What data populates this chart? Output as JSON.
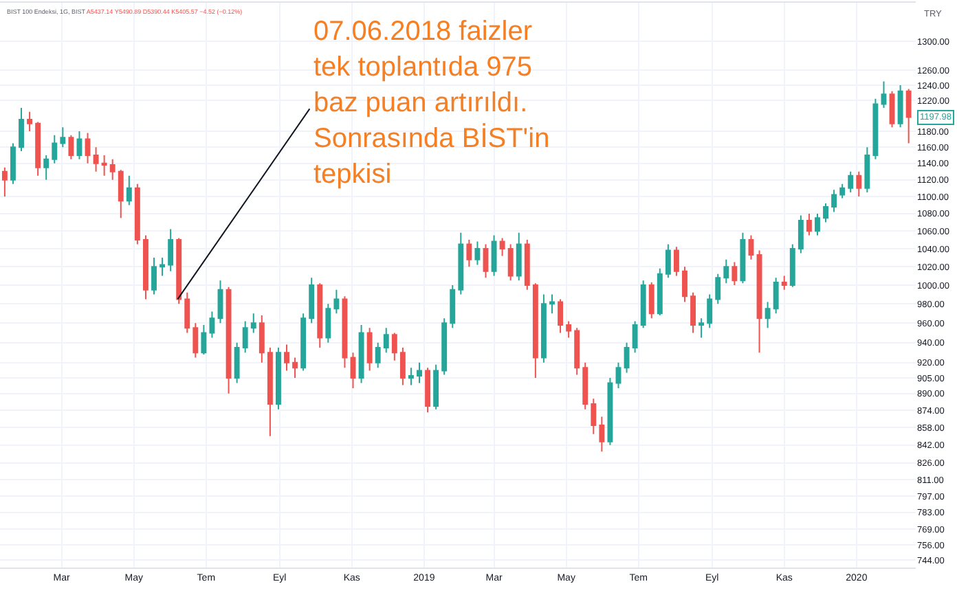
{
  "chart_data": {
    "type": "candlestick",
    "title": "BIST 100 Endeksi, 1G, BIST",
    "subtitle": "A5437.14 Y5490.89 D5390.44 K5405.57 −4.52 (−0.12%)",
    "annotations": [
      {
        "text": "07.06.2018 faizler\ntek toplantıda 975\nbaz puan artırıldı.\nSonrasında BİST'in\ntepkisi",
        "x": "2018-06-07",
        "y": 985
      },
      {
        "text": "TRY"
      },
      {
        "text": "1197.98",
        "x": "2020-02-14",
        "y": 1197.98
      }
    ],
    "x": [
      "2018-01-12",
      "2018-01-19",
      "2018-01-26",
      "2018-02-02",
      "2018-02-09",
      "2018-02-16",
      "2018-02-23",
      "2018-03-02",
      "2018-03-09",
      "2018-03-16",
      "2018-03-23",
      "2018-03-30",
      "2018-04-06",
      "2018-04-13",
      "2018-04-20",
      "2018-04-27",
      "2018-05-04",
      "2018-05-11",
      "2018-05-18",
      "2018-05-25",
      "2018-06-01",
      "2018-06-08",
      "2018-06-15",
      "2018-06-22",
      "2018-06-29",
      "2018-07-06",
      "2018-07-13",
      "2018-07-20",
      "2018-07-27",
      "2018-08-03",
      "2018-08-10",
      "2018-08-17",
      "2018-08-24",
      "2018-08-31",
      "2018-09-07",
      "2018-09-14",
      "2018-09-21",
      "2018-09-28",
      "2018-10-05",
      "2018-10-12",
      "2018-10-19",
      "2018-10-26",
      "2018-11-02",
      "2018-11-09",
      "2018-11-16",
      "2018-11-23",
      "2018-11-30",
      "2018-12-07",
      "2018-12-14",
      "2018-12-21",
      "2018-12-28",
      "2019-01-04",
      "2019-01-11",
      "2019-01-18",
      "2019-01-25",
      "2019-02-01",
      "2019-02-08",
      "2019-02-15",
      "2019-02-22",
      "2019-03-01",
      "2019-03-08",
      "2019-03-15",
      "2019-03-22",
      "2019-03-29",
      "2019-04-05",
      "2019-04-12",
      "2019-04-19",
      "2019-04-26",
      "2019-05-03",
      "2019-05-10",
      "2019-05-17",
      "2019-05-24",
      "2019-05-31",
      "2019-06-07",
      "2019-06-14",
      "2019-06-21",
      "2019-06-28",
      "2019-07-05",
      "2019-07-12",
      "2019-07-19",
      "2019-07-26",
      "2019-08-02",
      "2019-08-09",
      "2019-08-16",
      "2019-08-23",
      "2019-08-30",
      "2019-09-06",
      "2019-09-13",
      "2019-09-20",
      "2019-09-27",
      "2019-10-04",
      "2019-10-11",
      "2019-10-18",
      "2019-10-25",
      "2019-11-01",
      "2019-11-08",
      "2019-11-15",
      "2019-11-22",
      "2019-11-29",
      "2019-12-06",
      "2019-12-13",
      "2019-12-20",
      "2019-12-27",
      "2020-01-03",
      "2020-01-10",
      "2020-01-17",
      "2020-01-24",
      "2020-01-31",
      "2020-02-07",
      "2020-02-14"
    ],
    "ohlc": [
      [
        1130,
        1135,
        1100,
        1120
      ],
      [
        1120,
        1165,
        1115,
        1160
      ],
      [
        1160,
        1210,
        1155,
        1195
      ],
      [
        1195,
        1205,
        1180,
        1190
      ],
      [
        1190,
        1192,
        1125,
        1135
      ],
      [
        1135,
        1150,
        1120,
        1145
      ],
      [
        1145,
        1175,
        1140,
        1165
      ],
      [
        1165,
        1185,
        1160,
        1172
      ],
      [
        1172,
        1175,
        1145,
        1150
      ],
      [
        1150,
        1180,
        1145,
        1170
      ],
      [
        1170,
        1178,
        1140,
        1150
      ],
      [
        1150,
        1160,
        1130,
        1140
      ],
      [
        1140,
        1150,
        1125,
        1138
      ],
      [
        1138,
        1145,
        1120,
        1130
      ],
      [
        1130,
        1132,
        1075,
        1095
      ],
      [
        1095,
        1125,
        1090,
        1110
      ],
      [
        1110,
        1115,
        1045,
        1050
      ],
      [
        1050,
        1055,
        985,
        995
      ],
      [
        995,
        1030,
        990,
        1020
      ],
      [
        1020,
        1030,
        1010,
        1022
      ],
      [
        1022,
        1062,
        1015,
        1050
      ],
      [
        1050,
        1052,
        980,
        985
      ],
      [
        985,
        992,
        950,
        955
      ],
      [
        955,
        960,
        925,
        930
      ],
      [
        930,
        958,
        928,
        950
      ],
      [
        950,
        972,
        945,
        965
      ],
      [
        965,
        1005,
        960,
        995
      ],
      [
        995,
        998,
        890,
        905
      ],
      [
        905,
        940,
        900,
        935
      ],
      [
        935,
        962,
        930,
        955
      ],
      [
        955,
        970,
        950,
        960
      ],
      [
        960,
        968,
        920,
        930
      ],
      [
        930,
        935,
        850,
        880
      ],
      [
        880,
        935,
        875,
        930
      ],
      [
        930,
        938,
        912,
        920
      ],
      [
        920,
        925,
        905,
        915
      ],
      [
        915,
        970,
        912,
        965
      ],
      [
        965,
        1008,
        960,
        1000
      ],
      [
        1000,
        1002,
        935,
        945
      ],
      [
        945,
        980,
        940,
        975
      ],
      [
        975,
        995,
        970,
        985
      ],
      [
        985,
        988,
        915,
        925
      ],
      [
        925,
        930,
        895,
        905
      ],
      [
        905,
        958,
        900,
        950
      ],
      [
        950,
        955,
        912,
        920
      ],
      [
        920,
        940,
        915,
        935
      ],
      [
        935,
        955,
        930,
        948
      ],
      [
        948,
        950,
        922,
        930
      ],
      [
        930,
        935,
        898,
        905
      ],
      [
        905,
        915,
        898,
        907
      ],
      [
        907,
        920,
        900,
        912
      ],
      [
        912,
        915,
        872,
        878
      ],
      [
        878,
        918,
        875,
        912
      ],
      [
        912,
        965,
        908,
        960
      ],
      [
        960,
        1000,
        955,
        995
      ],
      [
        995,
        1058,
        990,
        1045
      ],
      [
        1045,
        1050,
        1020,
        1028
      ],
      [
        1028,
        1048,
        1022,
        1040
      ],
      [
        1040,
        1045,
        1008,
        1015
      ],
      [
        1015,
        1055,
        1010,
        1048
      ],
      [
        1048,
        1052,
        1032,
        1040
      ],
      [
        1040,
        1045,
        1005,
        1010
      ],
      [
        1010,
        1058,
        1005,
        1045
      ],
      [
        1045,
        1050,
        995,
        1000
      ],
      [
        1000,
        1002,
        905,
        925
      ],
      [
        925,
        990,
        920,
        980
      ],
      [
        980,
        990,
        970,
        982
      ],
      [
        982,
        985,
        950,
        958
      ],
      [
        958,
        962,
        945,
        952
      ],
      [
        952,
        955,
        908,
        915
      ],
      [
        915,
        920,
        875,
        880
      ],
      [
        880,
        885,
        852,
        860
      ],
      [
        860,
        868,
        836,
        845
      ],
      [
        845,
        905,
        842,
        900
      ],
      [
        900,
        920,
        895,
        915
      ],
      [
        915,
        940,
        910,
        935
      ],
      [
        935,
        962,
        930,
        958
      ],
      [
        958,
        1005,
        955,
        1000
      ],
      [
        1000,
        1003,
        965,
        970
      ],
      [
        970,
        1018,
        968,
        1012
      ],
      [
        1012,
        1045,
        1008,
        1038
      ],
      [
        1038,
        1042,
        1010,
        1015
      ],
      [
        1015,
        1020,
        982,
        988
      ],
      [
        988,
        992,
        950,
        958
      ],
      [
        958,
        965,
        945,
        960
      ],
      [
        960,
        990,
        955,
        985
      ],
      [
        985,
        1012,
        980,
        1008
      ],
      [
        1008,
        1028,
        1002,
        1020
      ],
      [
        1020,
        1025,
        1000,
        1005
      ],
      [
        1005,
        1058,
        1002,
        1050
      ],
      [
        1050,
        1055,
        1028,
        1033
      ],
      [
        1033,
        1038,
        930,
        965
      ],
      [
        965,
        982,
        955,
        975
      ],
      [
        975,
        1008,
        970,
        1003
      ],
      [
        1003,
        1010,
        995,
        1000
      ],
      [
        1000,
        1045,
        998,
        1040
      ],
      [
        1040,
        1078,
        1035,
        1072
      ],
      [
        1072,
        1080,
        1055,
        1060
      ],
      [
        1060,
        1080,
        1055,
        1075
      ],
      [
        1075,
        1092,
        1070,
        1088
      ],
      [
        1088,
        1108,
        1082,
        1102
      ],
      [
        1102,
        1115,
        1098,
        1110
      ],
      [
        1110,
        1130,
        1105,
        1125
      ],
      [
        1125,
        1130,
        1100,
        1110
      ],
      [
        1110,
        1160,
        1105,
        1150
      ],
      [
        1150,
        1222,
        1145,
        1215
      ],
      [
        1215,
        1245,
        1210,
        1228
      ],
      [
        1228,
        1232,
        1185,
        1190
      ],
      [
        1190,
        1240,
        1185,
        1232
      ],
      [
        1232,
        1235,
        1165,
        1197.98
      ]
    ],
    "colors": [
      "#ef5350",
      "#26a69a",
      "#26a69a",
      "#ef5350",
      "#ef5350",
      "#26a69a",
      "#26a69a",
      "#26a69a",
      "#ef5350",
      "#26a69a",
      "#ef5350",
      "#ef5350",
      "#ef5350",
      "#ef5350",
      "#ef5350",
      "#26a69a",
      "#ef5350",
      "#ef5350",
      "#26a69a",
      "#26a69a",
      "#26a69a",
      "#ef5350",
      "#ef5350",
      "#ef5350",
      "#26a69a",
      "#26a69a",
      "#26a69a",
      "#ef5350",
      "#26a69a",
      "#26a69a",
      "#26a69a",
      "#ef5350",
      "#ef5350",
      "#26a69a",
      "#ef5350",
      "#ef5350",
      "#26a69a",
      "#26a69a",
      "#ef5350",
      "#26a69a",
      "#26a69a",
      "#ef5350",
      "#ef5350",
      "#26a69a",
      "#ef5350",
      "#26a69a",
      "#26a69a",
      "#ef5350",
      "#ef5350",
      "#26a69a",
      "#26a69a",
      "#ef5350",
      "#26a69a",
      "#26a69a",
      "#26a69a",
      "#26a69a",
      "#ef5350",
      "#26a69a",
      "#ef5350",
      "#26a69a",
      "#ef5350",
      "#ef5350",
      "#26a69a",
      "#ef5350",
      "#ef5350",
      "#26a69a",
      "#26a69a",
      "#ef5350",
      "#ef5350",
      "#ef5350",
      "#ef5350",
      "#ef5350",
      "#ef5350",
      "#26a69a",
      "#26a69a",
      "#26a69a",
      "#26a69a",
      "#26a69a",
      "#ef5350",
      "#26a69a",
      "#26a69a",
      "#ef5350",
      "#ef5350",
      "#ef5350",
      "#26a69a",
      "#26a69a",
      "#26a69a",
      "#26a69a",
      "#ef5350",
      "#26a69a",
      "#ef5350",
      "#ef5350",
      "#26a69a",
      "#26a69a",
      "#ef5350",
      "#26a69a",
      "#26a69a",
      "#ef5350",
      "#26a69a",
      "#26a69a",
      "#26a69a",
      "#26a69a",
      "#26a69a",
      "#ef5350",
      "#26a69a",
      "#26a69a",
      "#26a69a",
      "#ef5350",
      "#26a69a",
      "#ef5350"
    ],
    "xlim": [
      "2018-01-08",
      "2020-02-20"
    ],
    "xticks": [
      {
        "value": "2018-03-01",
        "label": "Mar"
      },
      {
        "value": "2018-05-01",
        "label": "May"
      },
      {
        "value": "2018-07-01",
        "label": "Tem"
      },
      {
        "value": "2018-09-01",
        "label": "Eyl"
      },
      {
        "value": "2018-11-01",
        "label": "Kas"
      },
      {
        "value": "2019-01-01",
        "label": "2019"
      },
      {
        "value": "2019-03-01",
        "label": "Mar"
      },
      {
        "value": "2019-05-01",
        "label": "May"
      },
      {
        "value": "2019-07-01",
        "label": "Tem"
      },
      {
        "value": "2019-09-01",
        "label": "Eyl"
      },
      {
        "value": "2019-11-01",
        "label": "Kas"
      },
      {
        "value": "2020-01-01",
        "label": "2020"
      }
    ],
    "log": true,
    "ylim": [
      738,
      1355
    ],
    "yticks": [
      {
        "value": 744,
        "label": "744.00"
      },
      {
        "value": 756,
        "label": "756.00"
      },
      {
        "value": 769,
        "label": "769.00"
      },
      {
        "value": 783,
        "label": "783.00"
      },
      {
        "value": 797,
        "label": "797.00"
      },
      {
        "value": 811,
        "label": "811.00"
      },
      {
        "value": 826,
        "label": "826.00"
      },
      {
        "value": 842,
        "label": "842.00"
      },
      {
        "value": 858,
        "label": "858.00"
      },
      {
        "value": 874,
        "label": "874.00"
      },
      {
        "value": 890,
        "label": "890.00"
      },
      {
        "value": 905,
        "label": "905.00"
      },
      {
        "value": 920,
        "label": "920.00"
      },
      {
        "value": 940,
        "label": "940.00"
      },
      {
        "value": 960,
        "label": "960.00"
      },
      {
        "value": 980,
        "label": "980.00"
      },
      {
        "value": 1000,
        "label": "1000.00"
      },
      {
        "value": 1020,
        "label": "1020.00"
      },
      {
        "value": 1040,
        "label": "1040.00"
      },
      {
        "value": 1060,
        "label": "1060.00"
      },
      {
        "value": 1080,
        "label": "1080.00"
      },
      {
        "value": 1100,
        "label": "1100.00"
      },
      {
        "value": 1120,
        "label": "1120.00"
      },
      {
        "value": 1140,
        "label": "1140.00"
      },
      {
        "value": 1160,
        "label": "1160.00"
      },
      {
        "value": 1180,
        "label": "1180.00"
      },
      {
        "value": 1220,
        "label": "1220.00"
      },
      {
        "value": 1240,
        "label": "1240.00"
      },
      {
        "value": 1260,
        "label": "1260.00"
      },
      {
        "value": 1300,
        "label": "1300.00"
      }
    ],
    "grid": true
  }
}
